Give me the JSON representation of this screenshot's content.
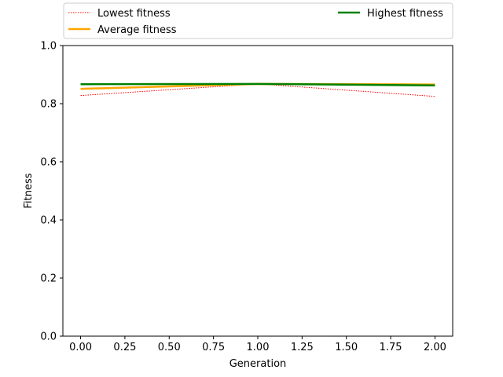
{
  "chart_data": {
    "type": "line",
    "xlabel": "Generation",
    "ylabel": "Fitness",
    "xlim": [
      -0.1,
      2.1
    ],
    "ylim": [
      0.0,
      1.0
    ],
    "xticks": [
      "0.00",
      "0.25",
      "0.50",
      "0.75",
      "1.00",
      "1.25",
      "1.50",
      "1.75",
      "2.00"
    ],
    "xtick_values": [
      0,
      0.25,
      0.5,
      0.75,
      1.0,
      1.25,
      1.5,
      1.75,
      2.0
    ],
    "yticks": [
      "0.0",
      "0.2",
      "0.4",
      "0.6",
      "0.8",
      "1.0"
    ],
    "ytick_values": [
      0,
      0.2,
      0.4,
      0.6,
      0.8,
      1.0
    ],
    "grid": false,
    "legend_position": "top, above plot",
    "series": [
      {
        "name": "Lowest fitness",
        "color": "#ff0000",
        "style": "dotted",
        "x": [
          0,
          1,
          2
        ],
        "y": [
          0.828,
          0.868,
          0.825
        ]
      },
      {
        "name": "Average fitness",
        "color": "#ffa500",
        "style": "solid",
        "x": [
          0,
          1,
          2
        ],
        "y": [
          0.851,
          0.868,
          0.866
        ]
      },
      {
        "name": "Highest fitness",
        "color": "#008000",
        "style": "solid",
        "x": [
          0,
          1,
          2
        ],
        "y": [
          0.867,
          0.868,
          0.863
        ]
      }
    ]
  }
}
